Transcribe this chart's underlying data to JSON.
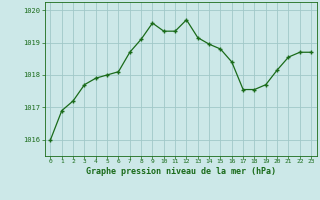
{
  "x": [
    0,
    1,
    2,
    3,
    4,
    5,
    6,
    7,
    8,
    9,
    10,
    11,
    12,
    13,
    14,
    15,
    16,
    17,
    18,
    19,
    20,
    21,
    22,
    23
  ],
  "y": [
    1016.0,
    1016.9,
    1017.2,
    1017.7,
    1017.9,
    1018.0,
    1018.1,
    1018.7,
    1019.1,
    1019.6,
    1019.35,
    1019.35,
    1019.7,
    1019.15,
    1018.95,
    1018.8,
    1018.4,
    1017.55,
    1017.55,
    1017.7,
    1018.15,
    1018.55,
    1018.7,
    1018.7
  ],
  "line_color": "#1a6b1a",
  "marker_color": "#1a6b1a",
  "bg_color": "#cce8e8",
  "grid_color": "#a0c8c8",
  "xlabel": "Graphe pression niveau de la mer (hPa)",
  "xlabel_color": "#1a6b1a",
  "tick_color": "#1a6b1a",
  "ylim": [
    1015.5,
    1020.25
  ],
  "yticks": [
    1016,
    1017,
    1018,
    1019,
    1020
  ],
  "xticks": [
    0,
    1,
    2,
    3,
    4,
    5,
    6,
    7,
    8,
    9,
    10,
    11,
    12,
    13,
    14,
    15,
    16,
    17,
    18,
    19,
    20,
    21,
    22,
    23
  ]
}
